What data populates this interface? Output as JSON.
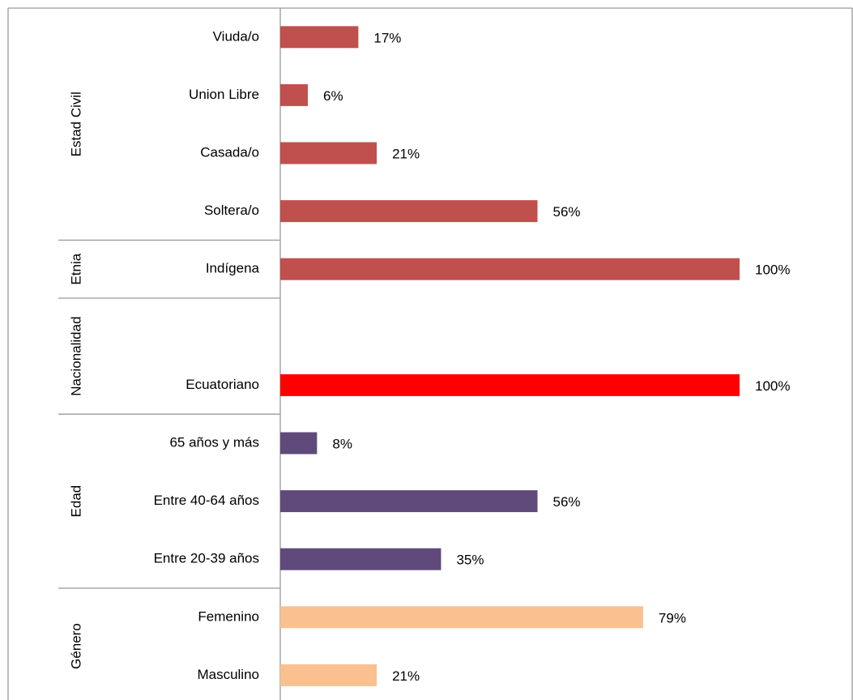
{
  "chart_data": {
    "type": "bar",
    "orientation": "horizontal",
    "xlim": [
      0,
      100
    ],
    "groups": [
      {
        "label": "Estad Civil",
        "color": "#c0504d",
        "categories": [
          "Viuda/o",
          "Union Libre",
          "Casada/o",
          "Soltera/o"
        ],
        "values": [
          17,
          6,
          21,
          56
        ],
        "value_labels": [
          "17%",
          "6%",
          "21%",
          "56%"
        ]
      },
      {
        "label": "Etnia",
        "color": "#c0504d",
        "categories": [
          "Indígena"
        ],
        "values": [
          100
        ],
        "value_labels": [
          "100%"
        ]
      },
      {
        "label": "Nacionalidad",
        "color": "#ff0000",
        "categories": [
          null,
          "Ecuatoriano"
        ],
        "values": [
          null,
          100
        ],
        "value_labels": [
          null,
          "100%"
        ]
      },
      {
        "label": "Edad",
        "color": "#604a7b",
        "categories": [
          "65 años y más",
          "Entre 40-64 años",
          "Entre 20-39 años"
        ],
        "values": [
          8,
          56,
          35
        ],
        "value_labels": [
          "8%",
          "56%",
          "35%"
        ]
      },
      {
        "label": "Género",
        "color": "#fac090",
        "categories": [
          "Femenino",
          "Masculino"
        ],
        "values": [
          79,
          21
        ],
        "value_labels": [
          "79%",
          "21%"
        ]
      }
    ]
  }
}
